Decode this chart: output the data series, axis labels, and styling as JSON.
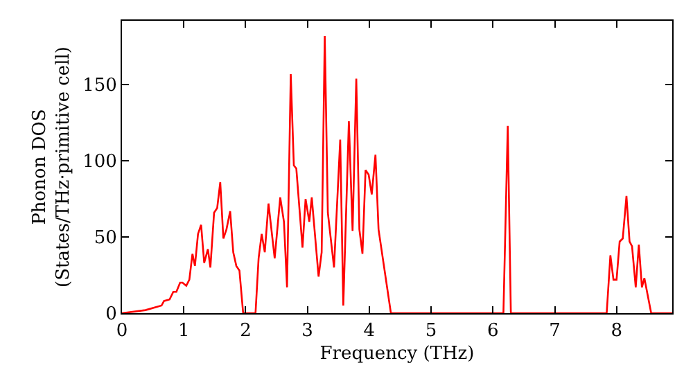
{
  "chart_data": {
    "type": "line",
    "xlabel": "Frequency (THz)",
    "ylabel": "Phonon DOS\n(States/THz·primitive cell)",
    "x": [
      0,
      0.38,
      0.64,
      0.68,
      0.77,
      0.83,
      0.88,
      0.94,
      0.98,
      1.04,
      1.09,
      1.14,
      1.18,
      1.23,
      1.28,
      1.33,
      1.39,
      1.43,
      1.49,
      1.54,
      1.59,
      1.64,
      1.69,
      1.75,
      1.8,
      1.85,
      1.9,
      1.96,
      2.16,
      2.21,
      2.26,
      2.31,
      2.37,
      2.47,
      2.56,
      2.62,
      2.67,
      2.73,
      2.78,
      2.82,
      2.92,
      2.97,
      3.03,
      3.07,
      3.18,
      3.23,
      3.28,
      3.33,
      3.43,
      3.53,
      3.58,
      3.67,
      3.73,
      3.79,
      3.84,
      3.89,
      3.94,
      3.99,
      4.04,
      4.1,
      4.15,
      4.35,
      6.17,
      6.24,
      6.29,
      7.84,
      7.9,
      7.95,
      8.0,
      8.05,
      8.1,
      8.16,
      8.21,
      8.25,
      8.31,
      8.36,
      8.41,
      8.45,
      8.56,
      8.9
    ],
    "series": [
      {
        "color": "#ff0000",
        "values": [
          0,
          2,
          5,
          8,
          9,
          14,
          14,
          20,
          20,
          18,
          22,
          39,
          31,
          52,
          58,
          33,
          42,
          30,
          66,
          69,
          86,
          49,
          55,
          67,
          40,
          31,
          28,
          0,
          0,
          36,
          52,
          40,
          72,
          36,
          76,
          60,
          17,
          157,
          97,
          95,
          43,
          75,
          60,
          76,
          24,
          40,
          182,
          66,
          30,
          114,
          5,
          126,
          54,
          154,
          55,
          39,
          94,
          91,
          78,
          104,
          55,
          0,
          0,
          123,
          0,
          0,
          38,
          22,
          22,
          47,
          49,
          77,
          47,
          44,
          17,
          45,
          17,
          23,
          0,
          0
        ]
      }
    ],
    "xlim": [
      0,
      8.9
    ],
    "ylim": [
      0,
      192
    ],
    "xticks": [
      0,
      1,
      2,
      3,
      4,
      5,
      6,
      7,
      8
    ],
    "yticks": [
      0,
      50,
      100,
      150
    ],
    "legend": false,
    "marker": "none",
    "line_style": "solid"
  }
}
